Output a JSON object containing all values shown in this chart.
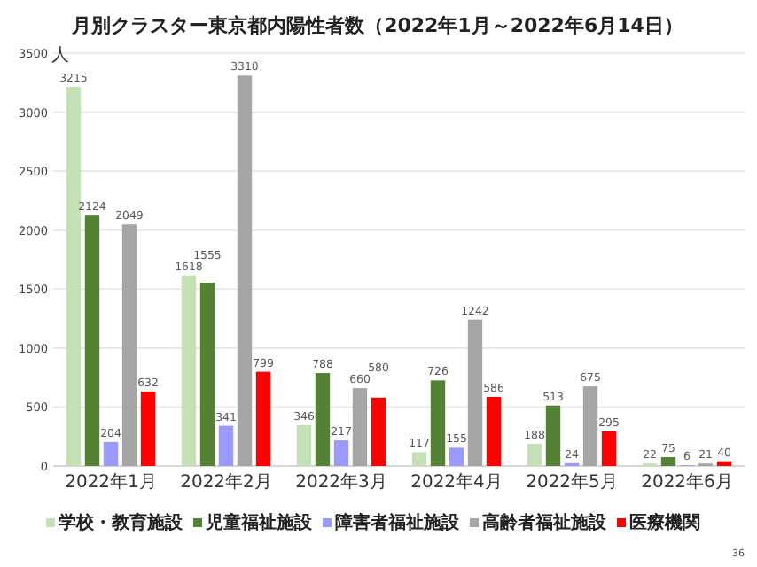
{
  "chart_data": {
    "type": "bar",
    "title": "月別クラスター東京都内陽性者数（2022年1月～2022年6月14日）",
    "ylabel": "人",
    "categories": [
      "2022年1月",
      "2022年2月",
      "2022年3月",
      "2022年4月",
      "2022年5月",
      "2022年6月"
    ],
    "series": [
      {
        "name": "学校・教育施設",
        "color": "#c5e0b4",
        "values": [
          3215,
          1618,
          346,
          117,
          188,
          22
        ]
      },
      {
        "name": "児童福祉施設",
        "color": "#548235",
        "values": [
          2124,
          1555,
          788,
          726,
          513,
          75
        ]
      },
      {
        "name": "障害者福祉施設",
        "color": "#9999ff",
        "values": [
          204,
          341,
          217,
          155,
          24,
          6
        ]
      },
      {
        "name": "高齢者福祉施設",
        "color": "#a5a5a5",
        "values": [
          2049,
          3310,
          660,
          1242,
          675,
          21
        ]
      },
      {
        "name": "医療機関",
        "color": "#ff0000",
        "values": [
          632,
          799,
          580,
          586,
          295,
          40
        ]
      }
    ],
    "ylim": [
      0,
      3500
    ],
    "yticks": [
      0,
      500,
      1000,
      1500,
      2000,
      2500,
      3000,
      3500
    ],
    "grid": "y",
    "legend": "bottom",
    "data_labels": true,
    "annotations": [
      "36"
    ]
  }
}
